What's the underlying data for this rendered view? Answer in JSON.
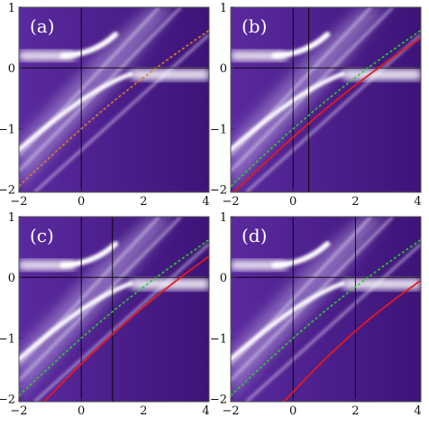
{
  "colors": {
    "background_dark": "#4a1c8a",
    "band_white": "#ffffff",
    "dashed_line": "#2ecc2e",
    "solid_line": "#e31a1c",
    "dashed_line_panel_a": "#e08020",
    "axis_lines": "#000000"
  },
  "chart_data": [
    {
      "type": "heatmap",
      "panel_label": "(a)",
      "xlim": [
        -2,
        4.1
      ],
      "ylim": [
        -2.05,
        1
      ],
      "xticks": [
        "-2",
        "0",
        "2",
        "4"
      ],
      "yticks": [
        "-2",
        "-1",
        "0",
        "1"
      ],
      "vertical_line_x": [
        0
      ],
      "horizontal_line_y": 0,
      "lines": [
        {
          "style": "dashed",
          "x": [
            -2,
            4.1
          ],
          "y": [
            -1.95,
            0.62
          ]
        }
      ]
    },
    {
      "type": "heatmap",
      "panel_label": "(b)",
      "xlim": [
        -2,
        4.1
      ],
      "ylim": [
        -2.05,
        1
      ],
      "xticks": [
        "-2",
        "0",
        "2",
        "4"
      ],
      "yticks": [
        "-2",
        "-1",
        "0",
        "1"
      ],
      "vertical_line_x": [
        0,
        0.5
      ],
      "horizontal_line_y": 0,
      "lines": [
        {
          "style": "dashed",
          "x": [
            -2,
            4.1
          ],
          "y": [
            -1.95,
            0.62
          ]
        },
        {
          "style": "solid",
          "x": [
            -1.9,
            4.1
          ],
          "y": [
            -2.05,
            0.5
          ]
        }
      ]
    },
    {
      "type": "heatmap",
      "panel_label": "(c)",
      "xlim": [
        -2,
        4.1
      ],
      "ylim": [
        -2.05,
        1
      ],
      "xticks": [
        "-2",
        "0",
        "2",
        "4"
      ],
      "yticks": [
        "-2",
        "-1",
        "0",
        "1"
      ],
      "vertical_line_x": [
        0,
        1
      ],
      "horizontal_line_y": 0,
      "lines": [
        {
          "style": "dashed",
          "x": [
            -2,
            4.1
          ],
          "y": [
            -1.95,
            0.62
          ]
        },
        {
          "style": "solid",
          "x": [
            -1.2,
            4.1
          ],
          "y": [
            -2.05,
            0.35
          ]
        }
      ]
    },
    {
      "type": "heatmap",
      "panel_label": "(d)",
      "xlim": [
        -2,
        4.1
      ],
      "ylim": [
        -2.05,
        1
      ],
      "xticks": [
        "-2",
        "0",
        "2",
        "4"
      ],
      "yticks": [
        "-2",
        "-1",
        "0",
        "1"
      ],
      "vertical_line_x": [
        0,
        2
      ],
      "horizontal_line_y": 0,
      "lines": [
        {
          "style": "dashed",
          "x": [
            -2,
            4.1
          ],
          "y": [
            -1.95,
            0.62
          ]
        },
        {
          "style": "solid",
          "x": [
            -0.3,
            4.1
          ],
          "y": [
            -2.05,
            -0.05
          ]
        }
      ]
    }
  ]
}
